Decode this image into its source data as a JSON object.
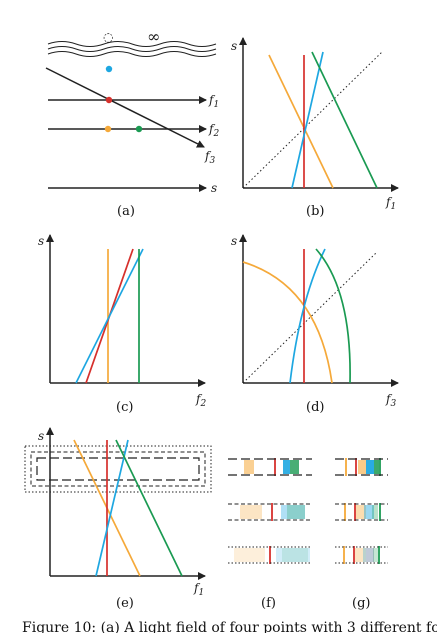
{
  "colors": {
    "orange": "#f5a93a",
    "red": "#d6302c",
    "blue": "#1ea7e1",
    "green": "#1a9a52",
    "axis": "#222222"
  },
  "panels": {
    "a": {
      "label": "(a)",
      "dots_symbol": "◌",
      "infinity_symbol": "∞",
      "line_labels": [
        "f",
        "f",
        "f",
        "s"
      ],
      "subscripts": [
        "1",
        "2",
        "3"
      ]
    },
    "b": {
      "label": "(b)",
      "y_axis": "s",
      "x_axis": "f",
      "x_sub": "1"
    },
    "c": {
      "label": "(c)",
      "y_axis": "s",
      "x_axis": "f",
      "x_sub": "2"
    },
    "d": {
      "label": "(d)",
      "y_axis": "s",
      "x_axis": "f",
      "x_sub": "3"
    },
    "e": {
      "label": "(e)",
      "y_axis": "s",
      "x_axis": "f",
      "x_sub": "1"
    },
    "f": {
      "label": "(f)"
    },
    "g": {
      "label": "(g)"
    }
  },
  "caption": "Figure 10: (a) A light field of four points with 3 different focal"
}
